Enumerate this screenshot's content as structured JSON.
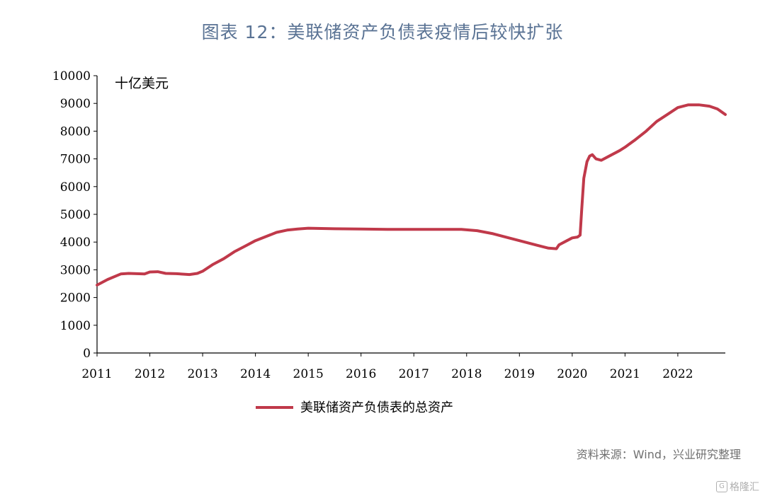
{
  "title": "图表 12：美联储资产负债表疫情后较快扩张",
  "source": "资料来源：Wind，兴业研究整理",
  "watermark": "格隆汇",
  "colors": {
    "line": "#c0394a",
    "title": "#5a7394",
    "axis": "#000000"
  },
  "chart_data": {
    "type": "line",
    "unit_label": "十亿美元",
    "x_ticks": [
      "2011",
      "2012",
      "2013",
      "2014",
      "2015",
      "2016",
      "2017",
      "2018",
      "2019",
      "2020",
      "2021",
      "2022"
    ],
    "y_ticks": [
      0,
      1000,
      2000,
      3000,
      4000,
      5000,
      6000,
      7000,
      8000,
      9000,
      10000
    ],
    "ylim": [
      0,
      10000
    ],
    "xlim": [
      2011.0,
      2022.9
    ],
    "legend_position": "bottom-center",
    "series": [
      {
        "name": "美联储资产负债表的总资产",
        "x": [
          2011.0,
          2011.2,
          2011.45,
          2011.6,
          2011.9,
          2012.0,
          2012.15,
          2012.3,
          2012.5,
          2012.75,
          2012.9,
          2013.0,
          2013.2,
          2013.4,
          2013.6,
          2013.8,
          2014.0,
          2014.2,
          2014.4,
          2014.6,
          2014.8,
          2015.0,
          2015.5,
          2016.0,
          2016.5,
          2017.0,
          2017.5,
          2017.9,
          2018.2,
          2018.5,
          2018.8,
          2019.0,
          2019.3,
          2019.55,
          2019.7,
          2019.75,
          2019.9,
          2020.0,
          2020.1,
          2020.15,
          2020.18,
          2020.22,
          2020.28,
          2020.33,
          2020.38,
          2020.45,
          2020.55,
          2020.7,
          2020.9,
          2021.0,
          2021.2,
          2021.4,
          2021.6,
          2021.8,
          2022.0,
          2022.2,
          2022.4,
          2022.6,
          2022.75,
          2022.9
        ],
        "values": [
          2450,
          2650,
          2850,
          2870,
          2850,
          2920,
          2930,
          2870,
          2860,
          2830,
          2870,
          2950,
          3200,
          3400,
          3650,
          3850,
          4050,
          4200,
          4350,
          4430,
          4470,
          4500,
          4480,
          4470,
          4460,
          4460,
          4460,
          4460,
          4410,
          4300,
          4150,
          4050,
          3900,
          3780,
          3760,
          3900,
          4050,
          4150,
          4180,
          4250,
          5200,
          6300,
          6900,
          7100,
          7150,
          7000,
          6950,
          7100,
          7300,
          7420,
          7700,
          8000,
          8350,
          8600,
          8850,
          8950,
          8950,
          8900,
          8800,
          8600
        ]
      }
    ]
  }
}
